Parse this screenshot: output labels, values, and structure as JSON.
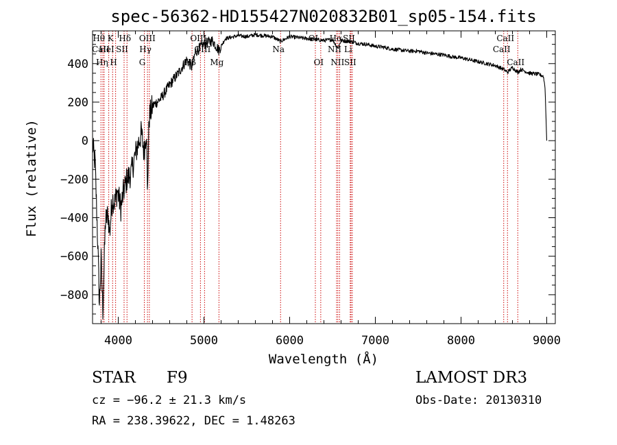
{
  "chart_data": {
    "type": "line",
    "title": "spec-56362-HD155427N020832B01_sp05-154.fits",
    "xlabel": "Wavelength (Å)",
    "ylabel": "Flux (relative)",
    "xlim": [
      3700,
      9100
    ],
    "ylim": [
      -950,
      570
    ],
    "x_ticks": [
      4000,
      5000,
      6000,
      7000,
      8000,
      9000
    ],
    "x_tick_labels": [
      "4000",
      "5000",
      "6000",
      "7000",
      "8000",
      "9000"
    ],
    "y_ticks": [
      -800,
      -600,
      -400,
      -200,
      0,
      200,
      400
    ],
    "y_tick_labels": [
      "−800",
      "−600",
      "−400",
      "−200",
      "0",
      "200",
      "400"
    ],
    "series": [
      {
        "name": "spectrum",
        "points": [
          [
            3700,
            -20
          ],
          [
            3730,
            -120
          ],
          [
            3760,
            -520
          ],
          [
            3780,
            -850
          ],
          [
            3800,
            -620
          ],
          [
            3820,
            -880
          ],
          [
            3850,
            -420
          ],
          [
            3880,
            -380
          ],
          [
            3900,
            -480
          ],
          [
            3930,
            -300
          ],
          [
            3960,
            -320
          ],
          [
            3990,
            -260
          ],
          [
            4030,
            -350
          ],
          [
            4060,
            -270
          ],
          [
            4100,
            -200
          ],
          [
            4150,
            -170
          ],
          [
            4190,
            -90
          ],
          [
            4230,
            -20
          ],
          [
            4270,
            40
          ],
          [
            4300,
            -60
          ],
          [
            4330,
            60
          ],
          [
            4340,
            -280
          ],
          [
            4360,
            120
          ],
          [
            4400,
            180
          ],
          [
            4500,
            220
          ],
          [
            4600,
            290
          ],
          [
            4700,
            350
          ],
          [
            4800,
            420
          ],
          [
            4861,
            380
          ],
          [
            4900,
            460
          ],
          [
            5000,
            500
          ],
          [
            5100,
            520
          ],
          [
            5173,
            470
          ],
          [
            5250,
            530
          ],
          [
            5400,
            545
          ],
          [
            5500,
            540
          ],
          [
            5600,
            550
          ],
          [
            5700,
            545
          ],
          [
            5800,
            540
          ],
          [
            5893,
            515
          ],
          [
            6000,
            540
          ],
          [
            6100,
            535
          ],
          [
            6200,
            530
          ],
          [
            6300,
            525
          ],
          [
            6400,
            520
          ],
          [
            6500,
            525
          ],
          [
            6563,
            480
          ],
          [
            6600,
            520
          ],
          [
            6700,
            515
          ],
          [
            6800,
            505
          ],
          [
            6900,
            500
          ],
          [
            7000,
            490
          ],
          [
            7100,
            485
          ],
          [
            7200,
            475
          ],
          [
            7300,
            470
          ],
          [
            7400,
            465
          ],
          [
            7500,
            465
          ],
          [
            7600,
            455
          ],
          [
            7700,
            450
          ],
          [
            7800,
            445
          ],
          [
            7900,
            435
          ],
          [
            8000,
            430
          ],
          [
            8100,
            420
          ],
          [
            8200,
            410
          ],
          [
            8300,
            400
          ],
          [
            8400,
            390
          ],
          [
            8498,
            370
          ],
          [
            8542,
            355
          ],
          [
            8600,
            380
          ],
          [
            8662,
            355
          ],
          [
            8700,
            370
          ],
          [
            8800,
            350
          ],
          [
            8900,
            345
          ],
          [
            8960,
            335
          ],
          [
            8980,
            280
          ],
          [
            9000,
            0
          ]
        ]
      }
    ],
    "lines": [
      {
        "label": "Hθ",
        "x": 3798,
        "row": 1
      },
      {
        "label": "CaII",
        "x": 3820,
        "row": 2
      },
      {
        "label": "Hη",
        "x": 3835,
        "row": 3
      },
      {
        "label": "HeI",
        "x": 3889,
        "row": 2
      },
      {
        "label": "K",
        "x": 3934,
        "row": 1
      },
      {
        "label": "H",
        "x": 3969,
        "row": 3
      },
      {
        "label": "SII",
        "x": 4068,
        "row": 2
      },
      {
        "label": "Hδ",
        "x": 4102,
        "row": 1
      },
      {
        "label": "G",
        "x": 4304,
        "row": 3
      },
      {
        "label": "Hγ",
        "x": 4341,
        "row": 2
      },
      {
        "label": "OIII",
        "x": 4363,
        "row": 1
      },
      {
        "label": "Hβ",
        "x": 4861,
        "row": 3
      },
      {
        "label": "OIII",
        "x": 4959,
        "row": 1
      },
      {
        "label": "OIII",
        "x": 5007,
        "row": 2
      },
      {
        "label": "Mg",
        "x": 5175,
        "row": 3
      },
      {
        "label": "Na",
        "x": 5894,
        "row": 2
      },
      {
        "label": "OI",
        "x": 6300,
        "row": 1
      },
      {
        "label": "OI",
        "x": 6363,
        "row": 3
      },
      {
        "label": "NII",
        "x": 6548,
        "row": 2
      },
      {
        "label": "Hα",
        "x": 6563,
        "row": 1
      },
      {
        "label": "NII",
        "x": 6583,
        "row": 3
      },
      {
        "label": "Li",
        "x": 6707,
        "row": 2
      },
      {
        "label": "SII",
        "x": 6716,
        "row": 1
      },
      {
        "label": "SII",
        "x": 6731,
        "row": 3
      },
      {
        "label": "CaII",
        "x": 8498,
        "row": 2
      },
      {
        "label": "CaII",
        "x": 8542,
        "row": 1
      },
      {
        "label": "CaII",
        "x": 8662,
        "row": 3
      }
    ]
  },
  "info": {
    "class_label": "STAR",
    "subclass": "F9",
    "survey": "LAMOST DR3",
    "cz": "cz = −96.2 ± 21.3 km/s",
    "obs_date": "Obs-Date: 20130310",
    "coords": "RA = 238.39622, DEC =    1.48263"
  },
  "colors": {
    "spectrum": "#000000",
    "line_markers": "#cc0000",
    "axes": "#000000"
  }
}
